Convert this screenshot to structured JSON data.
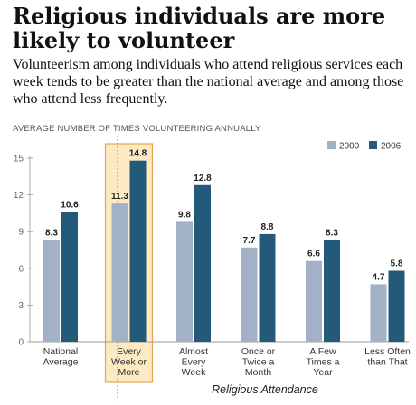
{
  "header": {
    "title": "Religious individuals are more likely to volunteer",
    "subtitle": "Volunteerism among individuals who attend religious services each week tends to be greater than the national average and among those who attend less frequently."
  },
  "chart_data": {
    "type": "bar",
    "ylabel": "AVERAGE NUMBER OF TIMES VOLUNTEERING ANNUALLY",
    "xlabel": "Religious Attendance",
    "ylim": [
      0,
      15
    ],
    "yticks": [
      0,
      3,
      6,
      9,
      12,
      15
    ],
    "grid": false,
    "legend_position": "top-right",
    "categories": [
      [
        "National",
        "Average"
      ],
      [
        "Every",
        "Week or",
        "More"
      ],
      [
        "Almost",
        "Every",
        "Week"
      ],
      [
        "Once or",
        "Twice a",
        "Month"
      ],
      [
        "A Few",
        "Times a",
        "Year"
      ],
      [
        "Less Often",
        "than That"
      ]
    ],
    "highlighted_category": 1,
    "series": [
      {
        "name": "2000",
        "color": "#a3b1c6",
        "values": [
          8.3,
          11.3,
          9.8,
          7.7,
          6.6,
          4.7
        ]
      },
      {
        "name": "2006",
        "color": "#235a79",
        "values": [
          10.6,
          14.8,
          12.8,
          8.8,
          8.3,
          5.8
        ]
      }
    ],
    "colors": {
      "highlight_fill": "#fde9c3",
      "highlight_stroke": "#e5a84a",
      "axis": "#999999",
      "text": "#444444"
    }
  }
}
